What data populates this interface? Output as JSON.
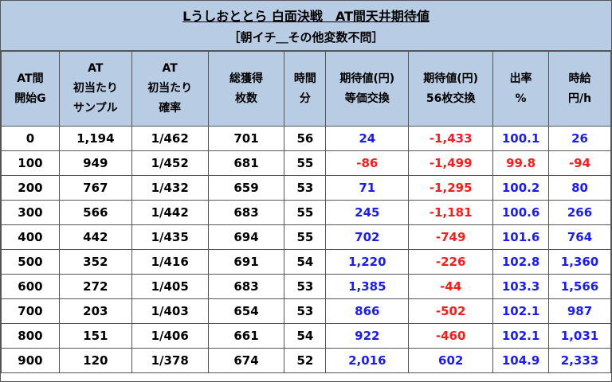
{
  "title": "Lうしおととら 白面決戦　AT間天井期待値",
  "subtitle": "［朝イチ＿その他変数不問］",
  "headers": [
    [
      "AT間",
      "開始G"
    ],
    [
      "AT",
      "初当たり",
      "サンプル"
    ],
    [
      "AT",
      "初当たり",
      "確率"
    ],
    [
      "総獲得",
      "枚数"
    ],
    [
      "時間",
      "分"
    ],
    [
      "期待値(円)",
      "等価交換"
    ],
    [
      "期待値(円)",
      "56枚交換"
    ],
    [
      "出率",
      "%"
    ],
    [
      "時給",
      "円/h"
    ]
  ],
  "rows": [
    [
      "0",
      "1,194",
      "1/462",
      "701",
      "56",
      "24",
      "-1,433",
      "100.1",
      "26"
    ],
    [
      "100",
      "949",
      "1/452",
      "681",
      "55",
      "-86",
      "-1,499",
      "99.8",
      "-94"
    ],
    [
      "200",
      "767",
      "1/432",
      "659",
      "53",
      "71",
      "-1,295",
      "100.2",
      "80"
    ],
    [
      "300",
      "566",
      "1/442",
      "683",
      "55",
      "245",
      "-1,181",
      "100.6",
      "266"
    ],
    [
      "400",
      "442",
      "1/435",
      "694",
      "55",
      "702",
      "-749",
      "101.6",
      "764"
    ],
    [
      "500",
      "352",
      "1/416",
      "691",
      "54",
      "1,220",
      "-226",
      "102.8",
      "1,360"
    ],
    [
      "600",
      "272",
      "1/405",
      "683",
      "53",
      "1,385",
      "-44",
      "103.3",
      "1,566"
    ],
    [
      "700",
      "203",
      "1/403",
      "654",
      "53",
      "866",
      "-502",
      "102.1",
      "987"
    ],
    [
      "800",
      "151",
      "1/406",
      "661",
      "54",
      "922",
      "-460",
      "102.1",
      "1,031"
    ],
    [
      "900",
      "120",
      "1/378",
      "674",
      "52",
      "2,016",
      "602",
      "104.9",
      "2,333"
    ]
  ],
  "colors": {
    "positive": "#1a1aff",
    "negative": "#ff1a1a",
    "header_bg": "#b8cce4"
  }
}
